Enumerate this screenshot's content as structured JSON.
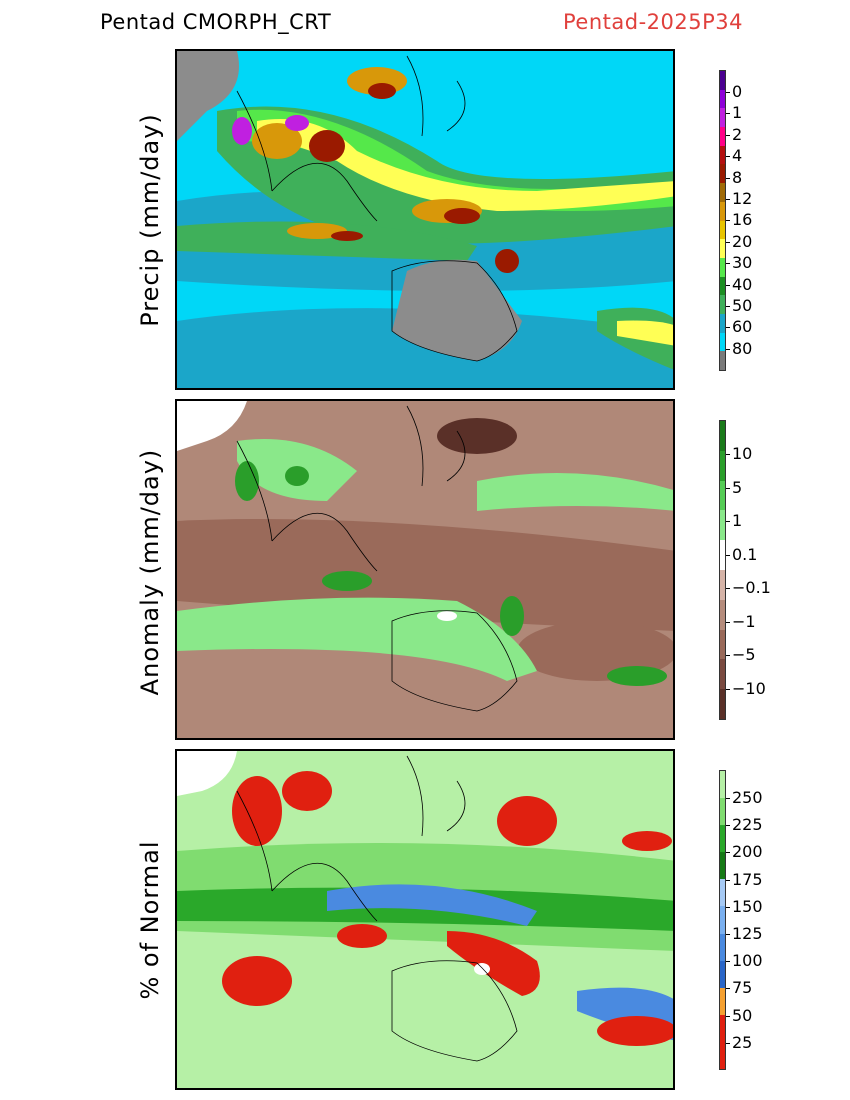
{
  "header": {
    "title_left": "Pentad CMORPH_CRT",
    "title_right": "Pentad-2025P34"
  },
  "panels": [
    {
      "ylabel": "Precip (mm/day)",
      "colorbar": {
        "colors": [
          "#7a7a7a",
          "#00d7f7",
          "#1ba6c9",
          "#3fb05a",
          "#1c8f22",
          "#55e84a",
          "#ffff55",
          "#e8c400",
          "#d8980a",
          "#a06a06",
          "#9a1a00",
          "#b41010",
          "#ff0088",
          "#c020e0",
          "#8e00d8",
          "#4a0090"
        ],
        "labels": [
          "0",
          "1",
          "2",
          "4",
          "8",
          "12",
          "16",
          "20",
          "30",
          "40",
          "50",
          "60",
          "80"
        ]
      },
      "palette": {
        "ocean": "#00d7f7",
        "dry": "#8c8c8c",
        "wet1": "#1ba6c9",
        "wet2": "#3fb05a",
        "wet3": "#55e84a",
        "wet4": "#ffff55",
        "wet5": "#d8980a",
        "wet6": "#9a1a00",
        "wet7": "#c020e0"
      }
    },
    {
      "ylabel": "Anomaly (mm/day)",
      "colorbar": {
        "colors": [
          "#5a3028",
          "#7a4a40",
          "#9a6a5a",
          "#b58c7c",
          "#d6b4a8",
          "#ffffff",
          "#8ae88a",
          "#55cc55",
          "#2a9e2a",
          "#1a7a1a"
        ],
        "labels": [
          "10",
          "5",
          "1",
          "0.1",
          "−0.1",
          "−1",
          "−5",
          "−10"
        ]
      },
      "palette": {
        "base": "#b08878",
        "neg2": "#9a6a5a",
        "neg3": "#5a3028",
        "pos1": "#8ae88a",
        "pos2": "#2a9e2a",
        "zero": "#ffffff"
      }
    },
    {
      "ylabel": "% of Normal",
      "colorbar": {
        "colors": [
          "#e02010",
          "#e02010",
          "#f5a030",
          "#2a66c8",
          "#4a8ae0",
          "#7ab0f0",
          "#a6caf5",
          "#167a16",
          "#2aa82a",
          "#80dc70",
          "#b6f0a6"
        ],
        "labels": [
          "250",
          "225",
          "200",
          "175",
          "150",
          "125",
          "100",
          "75",
          "50",
          "25"
        ]
      },
      "palette": {
        "base": "#b6f0a6",
        "g2": "#80dc70",
        "g3": "#2aa82a",
        "blue": "#4a8ae0",
        "red": "#e02010",
        "white": "#ffffff"
      }
    }
  ]
}
